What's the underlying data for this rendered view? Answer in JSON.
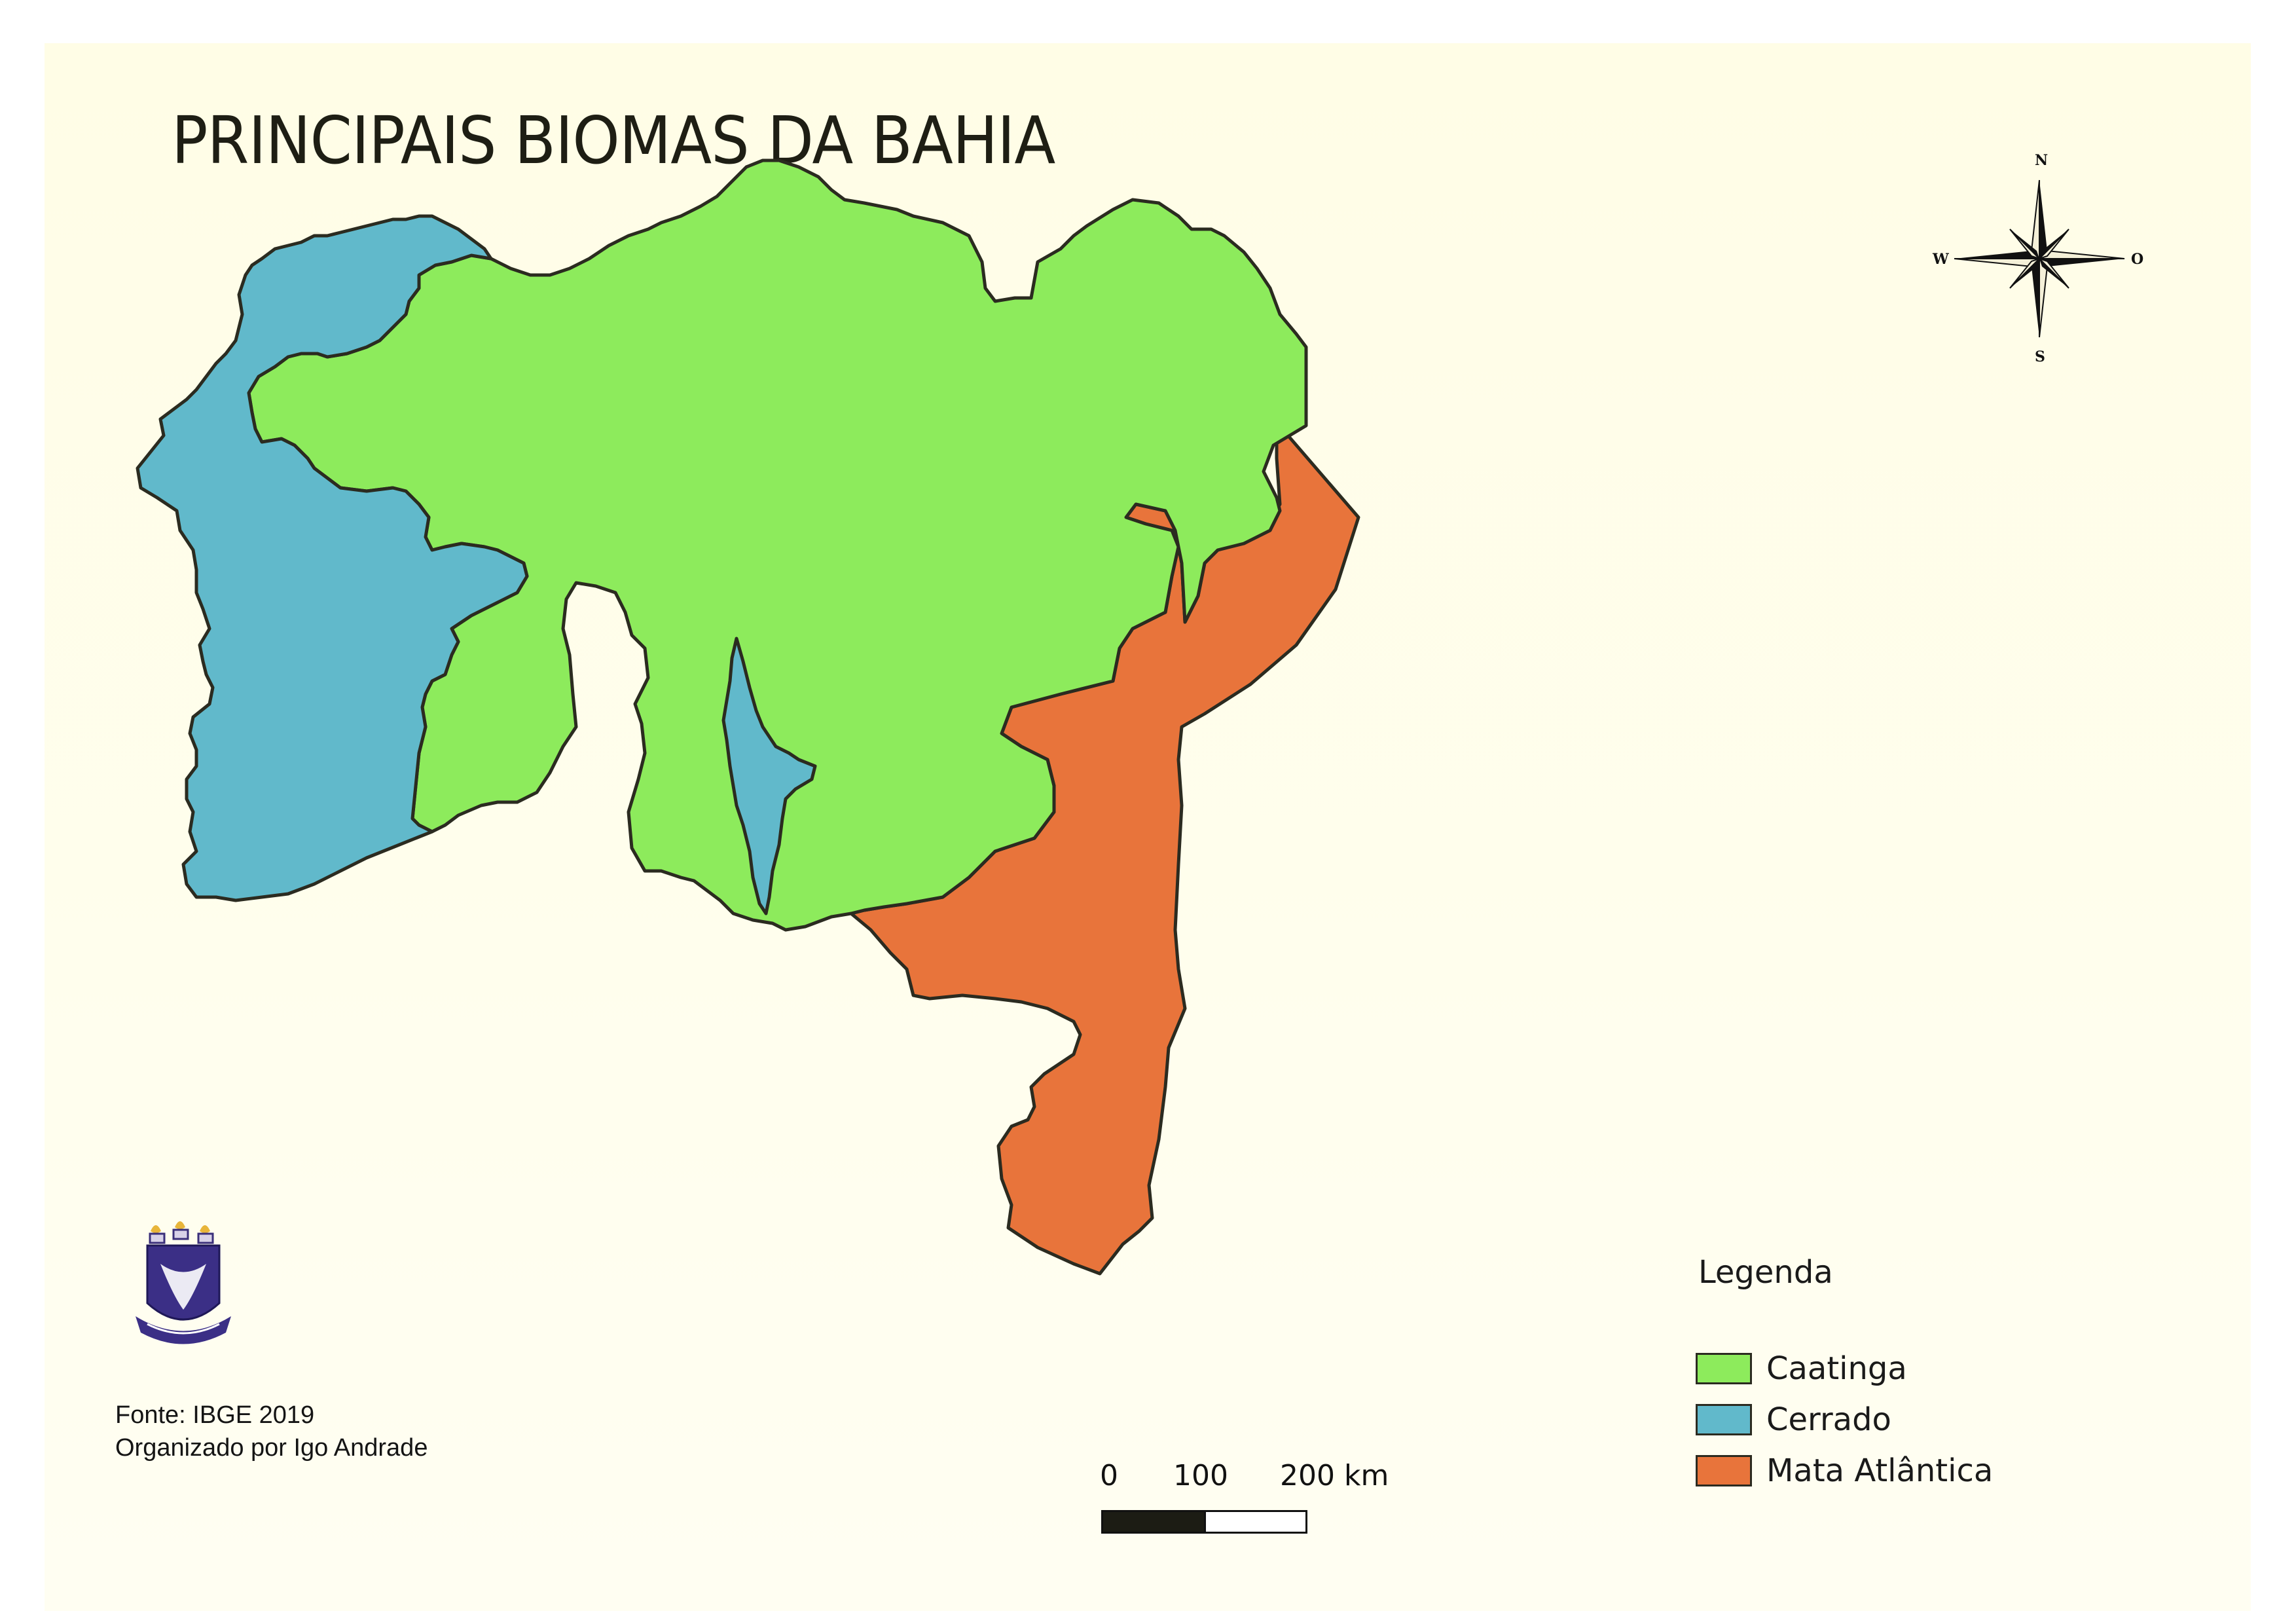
{
  "title": "PRINCIPAIS BIOMAS DA BAHIA",
  "compass": {
    "north": "N",
    "south": "S",
    "west": "W",
    "east": "O"
  },
  "credits": {
    "source": "Fonte: IBGE 2019",
    "author": "Organizado por Igo Andrade"
  },
  "scale": {
    "labels": [
      "0",
      "100",
      "200 km"
    ]
  },
  "legend": {
    "title": "Legenda",
    "items": [
      {
        "label": "Caatinga",
        "color": "#8deb5c"
      },
      {
        "label": "Cerrado",
        "color": "#61b9cb"
      },
      {
        "label": "Mata Atlântica",
        "color": "#e8743b"
      }
    ]
  },
  "colors": {
    "caatinga": "#8deb5c",
    "cerrado": "#61b9cb",
    "mata_atlantica": "#e8743b",
    "outline": "#2b2b20"
  },
  "logo": {
    "icon": "university-crest-icon"
  }
}
